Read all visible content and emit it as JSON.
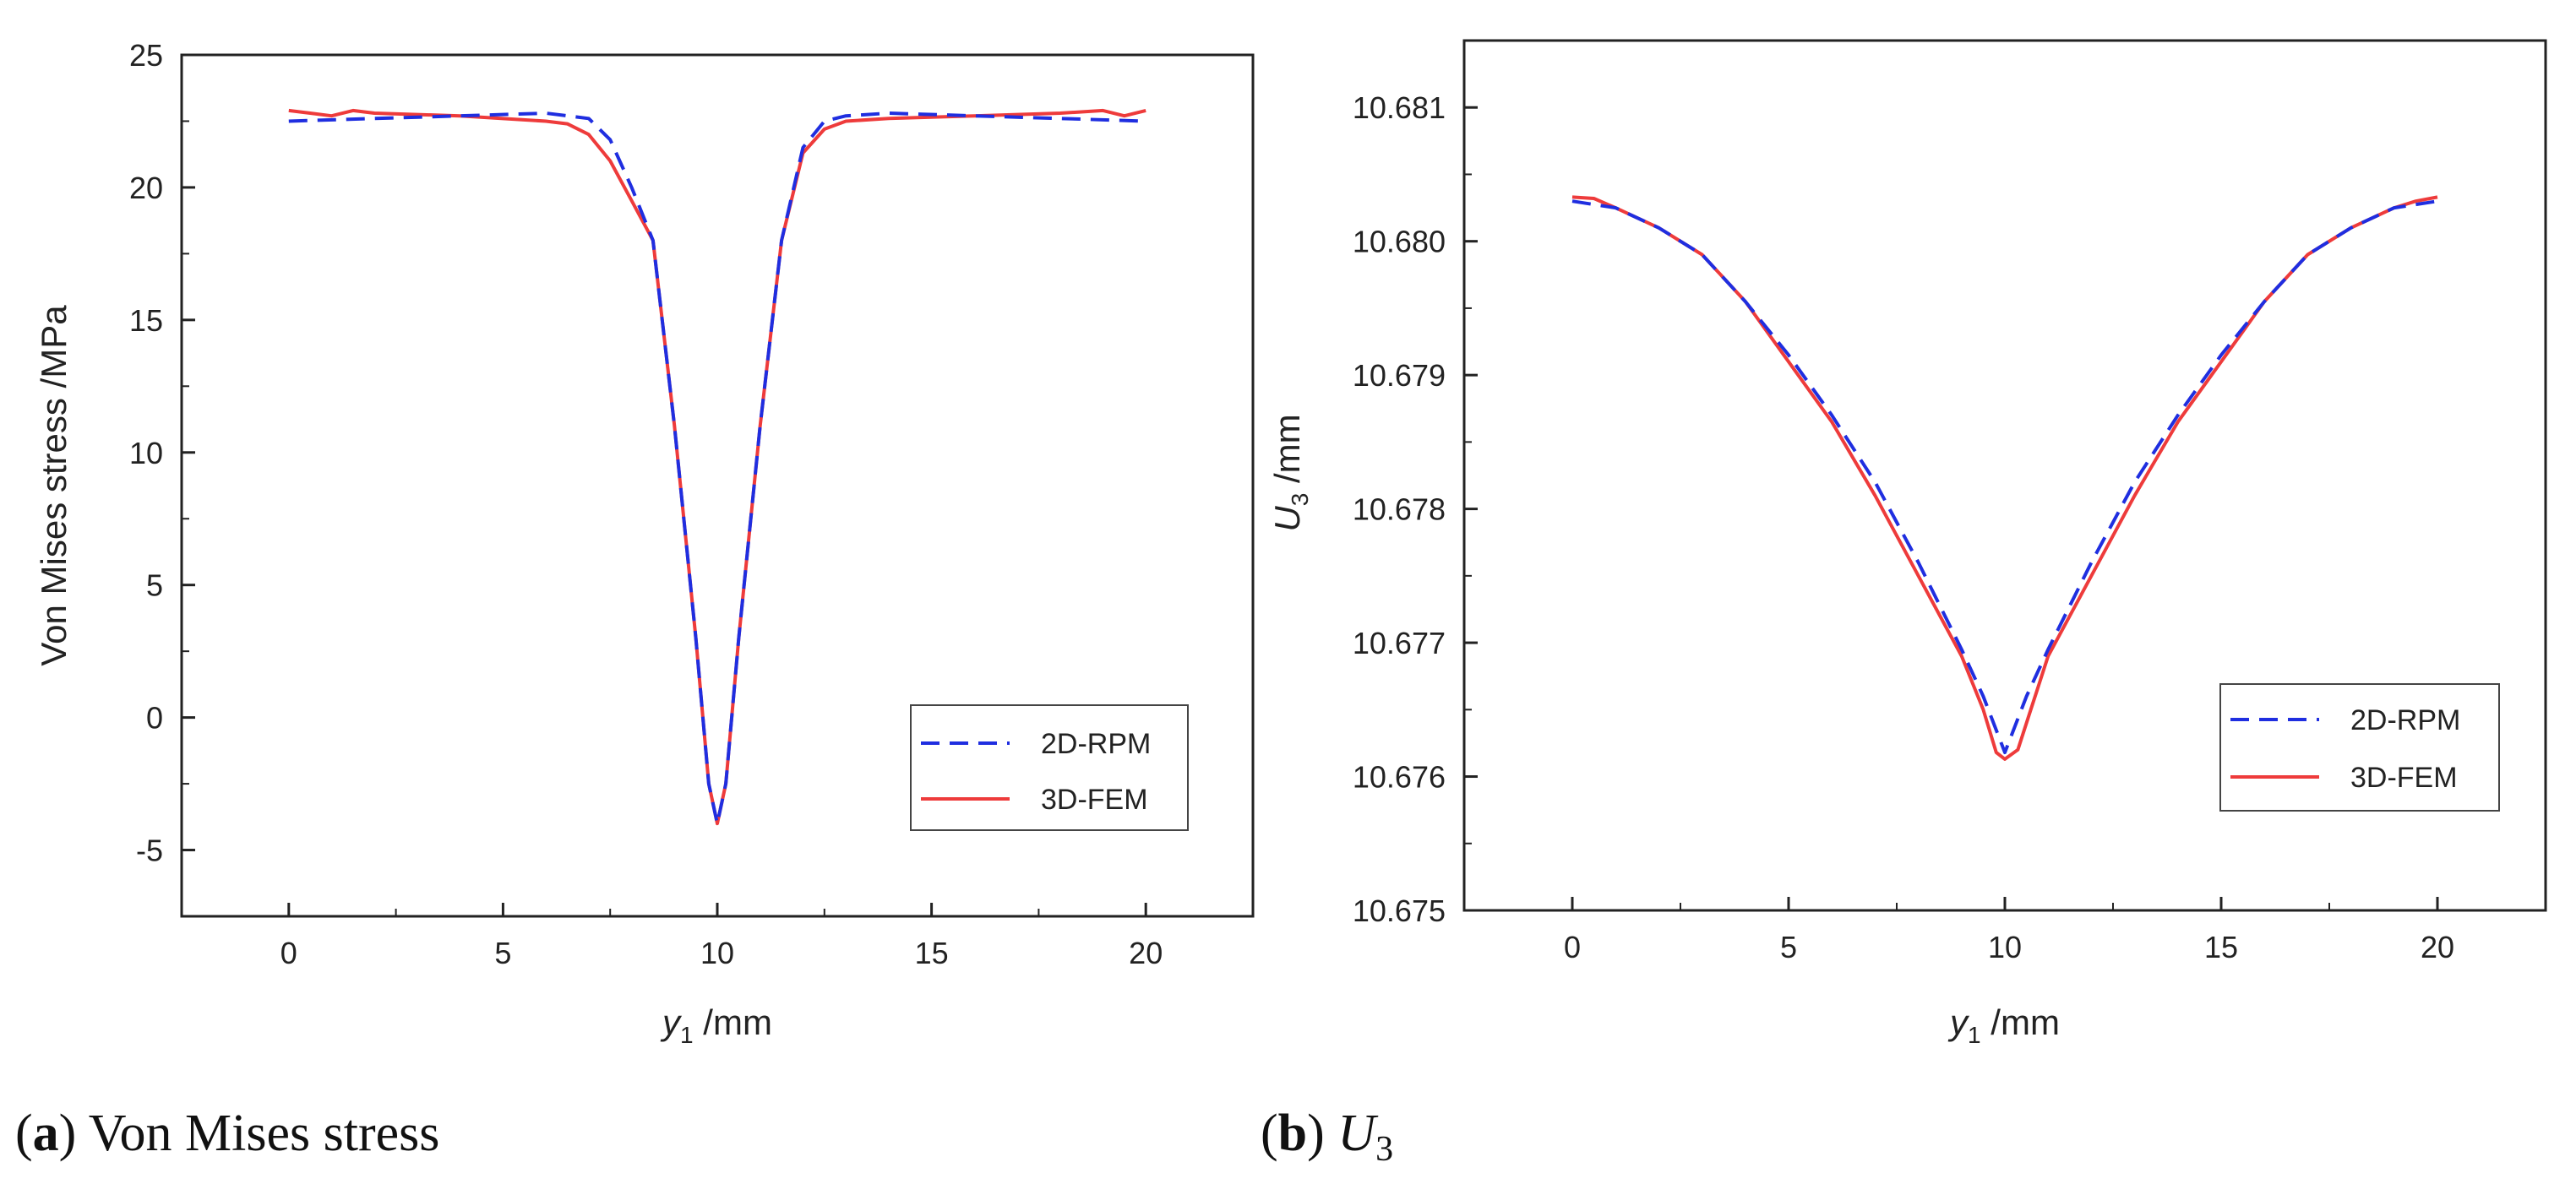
{
  "captions": {
    "a": {
      "letter": "a",
      "text": "Von Mises stress"
    },
    "b": {
      "letter": "b",
      "symbol": "U",
      "subscript": "3"
    }
  },
  "colors": {
    "rpm": "#1f2ee0",
    "fem": "#ee3b3b",
    "axis": "#222222"
  },
  "chart_data": [
    {
      "id": "a",
      "type": "line",
      "title": "",
      "xlabel": {
        "symbol": "y",
        "subscript": "1",
        "unit": " /mm"
      },
      "ylabel": "Von Mises  stress /MPa",
      "xlim": [
        -2.5,
        22.5
      ],
      "ylim": [
        -7.5,
        25
      ],
      "xticks": [
        0,
        5,
        10,
        15,
        20
      ],
      "xtick_labels": [
        "0",
        "5",
        "10",
        "15",
        "20"
      ],
      "yticks": [
        -5,
        0,
        5,
        10,
        15,
        20,
        25
      ],
      "ytick_labels": [
        "-5",
        "0",
        "5",
        "10",
        "15",
        "20",
        "25"
      ],
      "legend": {
        "position": "lower-right",
        "entries": [
          "2D-RPM",
          "3D-FEM"
        ]
      },
      "series": [
        {
          "name": "2D-RPM",
          "style": "dashed",
          "x": [
            0,
            2,
            4,
            6,
            7,
            7.5,
            8,
            8.5,
            9,
            9.5,
            9.8,
            10,
            10.2,
            10.5,
            11,
            11.5,
            12,
            12.5,
            13,
            14,
            16,
            18,
            20
          ],
          "y": [
            22.5,
            22.6,
            22.7,
            22.8,
            22.6,
            21.8,
            20,
            18,
            11,
            3,
            -2.5,
            -4,
            -2.5,
            3,
            11,
            18,
            21.5,
            22.5,
            22.7,
            22.8,
            22.7,
            22.6,
            22.5
          ]
        },
        {
          "name": "3D-FEM",
          "style": "solid",
          "x": [
            0,
            0.5,
            1,
            1.5,
            2,
            4,
            6,
            6.5,
            7,
            7.5,
            8,
            8.5,
            9,
            9.5,
            9.8,
            10,
            10.2,
            10.5,
            11,
            11.5,
            12,
            12.5,
            13,
            14,
            16,
            18,
            19,
            19.5,
            20
          ],
          "y": [
            22.9,
            22.8,
            22.7,
            22.9,
            22.8,
            22.7,
            22.5,
            22.4,
            22.0,
            21.0,
            19.5,
            18,
            11,
            3,
            -2.5,
            -4,
            -2.5,
            3,
            11,
            18,
            21.3,
            22.2,
            22.5,
            22.6,
            22.7,
            22.8,
            22.9,
            22.7,
            22.9
          ]
        }
      ]
    },
    {
      "id": "b",
      "type": "line",
      "title": "",
      "xlabel": {
        "symbol": "y",
        "subscript": "1",
        "unit": " /mm"
      },
      "ylabel": {
        "symbol": "U",
        "subscript": "3",
        "unit": " /mm"
      },
      "xlim": [
        -2.5,
        22.5
      ],
      "ylim": [
        10.675,
        10.6815
      ],
      "xticks": [
        0,
        5,
        10,
        15,
        20
      ],
      "xtick_labels": [
        "0",
        "5",
        "10",
        "15",
        "20"
      ],
      "yticks": [
        10.675,
        10.676,
        10.677,
        10.678,
        10.679,
        10.68,
        10.681
      ],
      "ytick_labels": [
        "10.675",
        "10.676",
        "10.677",
        "10.678",
        "10.679",
        "10.680",
        "10.681"
      ],
      "legend": {
        "position": "lower-right",
        "entries": [
          "2D-RPM",
          "3D-FEM"
        ]
      },
      "series": [
        {
          "name": "2D-RPM",
          "style": "dashed",
          "x": [
            0,
            1,
            2,
            3,
            4,
            5,
            6,
            7,
            8,
            9,
            9.5,
            10,
            10.5,
            11,
            12,
            13,
            14,
            15,
            16,
            17,
            18,
            19,
            20
          ],
          "y": [
            10.6803,
            10.68025,
            10.6801,
            10.6799,
            10.67955,
            10.67915,
            10.6787,
            10.6782,
            10.6776,
            10.67695,
            10.6766,
            10.67618,
            10.6766,
            10.67695,
            10.6776,
            10.6782,
            10.6787,
            10.67915,
            10.67955,
            10.6799,
            10.6801,
            10.68025,
            10.6803
          ]
        },
        {
          "name": "3D-FEM",
          "style": "solid",
          "x": [
            0,
            0.5,
            1,
            2,
            3,
            4,
            5,
            6,
            7,
            8,
            9,
            9.5,
            9.8,
            10,
            10.3,
            10.6,
            11,
            12,
            13,
            14,
            15,
            16,
            17,
            18,
            19,
            19.5,
            20
          ],
          "y": [
            10.68033,
            10.68032,
            10.68025,
            10.6801,
            10.6799,
            10.67955,
            10.6791,
            10.67865,
            10.6781,
            10.6775,
            10.6769,
            10.6765,
            10.67618,
            10.67613,
            10.6762,
            10.6765,
            10.6769,
            10.6775,
            10.6781,
            10.67865,
            10.6791,
            10.67955,
            10.6799,
            10.6801,
            10.68025,
            10.6803,
            10.68033
          ]
        }
      ]
    }
  ]
}
